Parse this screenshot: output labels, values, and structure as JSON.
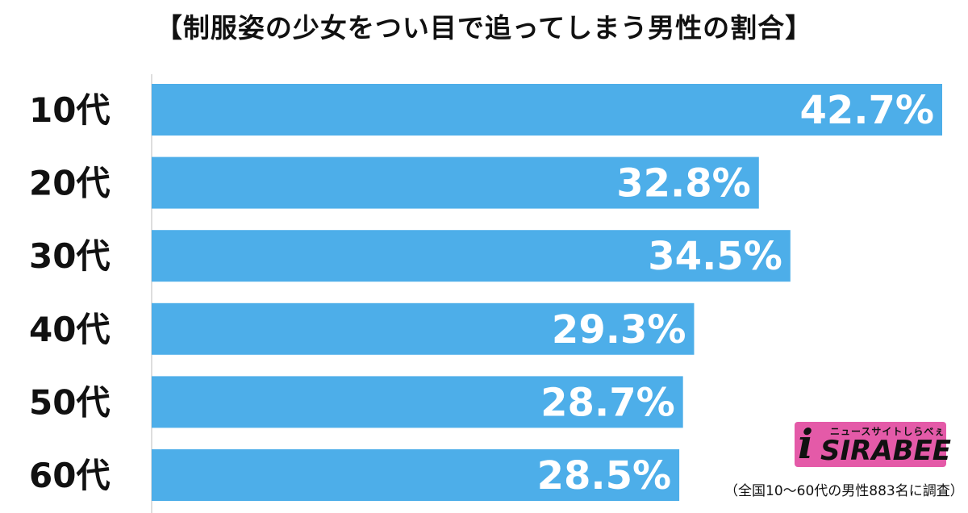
{
  "chart_data": {
    "type": "bar",
    "orientation": "horizontal",
    "title": "【制服姿の少女をつい目で追ってしまう男性の割合】",
    "categories": [
      "10代",
      "20代",
      "30代",
      "40代",
      "50代",
      "60代"
    ],
    "values": [
      42.7,
      32.8,
      34.5,
      29.3,
      28.7,
      28.5
    ],
    "value_labels": [
      "42.7%",
      "32.8%",
      "34.5%",
      "29.3%",
      "28.7%",
      "28.5%"
    ],
    "unit": "%",
    "xlim": [
      0,
      42.7
    ],
    "grid": false,
    "legend": "none",
    "bar_color": "#4daee9",
    "label_color": "#ffffff"
  },
  "logo": {
    "tagline": "ニュースサイトしらべぇ",
    "name": "SIRABEE",
    "accent": "#e45aa8"
  },
  "footnote": "（全国10〜60代の男性883名に調査）"
}
